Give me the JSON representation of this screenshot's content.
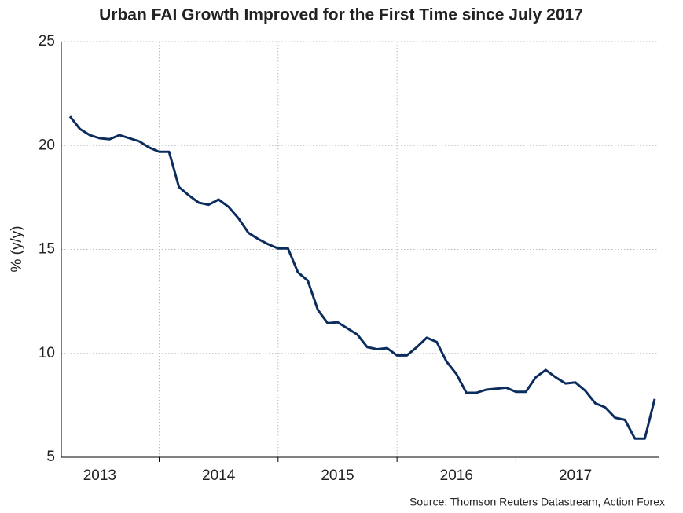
{
  "chart_data": {
    "type": "line",
    "title": "Urban FAI Growth Improved for the First Time since July 2017",
    "y_label": "% (y/y)",
    "source": "Source: Thomson Reuters Datastream, Action Forex",
    "categories": [
      null,
      null,
      null,
      "2013",
      null,
      null,
      null,
      null,
      null,
      null,
      null,
      null,
      null,
      null,
      null,
      "2014",
      null,
      null,
      null,
      null,
      null,
      null,
      null,
      null,
      null,
      null,
      null,
      "2015",
      null,
      null,
      null,
      null,
      null,
      null,
      null,
      null,
      null,
      null,
      null,
      "2016",
      null,
      null,
      null,
      null,
      null,
      null,
      null,
      null,
      null,
      null,
      null,
      "2017",
      null,
      null,
      null,
      null,
      null,
      null,
      null,
      null
    ],
    "series": [
      {
        "name": "Urban FAI",
        "color": "#0b2d5e",
        "values": [
          21.4,
          20.8,
          20.5,
          20.35,
          20.3,
          20.5,
          20.35,
          20.2,
          19.9,
          19.7,
          19.7,
          18.0,
          17.6,
          17.25,
          17.15,
          17.4,
          17.05,
          16.5,
          15.8,
          15.5,
          15.25,
          15.05,
          15.05,
          13.9,
          13.5,
          12.1,
          11.45,
          11.5,
          11.2,
          10.9,
          10.3,
          10.2,
          10.25,
          9.9,
          9.9,
          10.3,
          10.75,
          10.55,
          9.6,
          9.0,
          8.1,
          8.1,
          8.25,
          8.3,
          8.35,
          8.15,
          8.15,
          8.85,
          9.2,
          8.85,
          8.55,
          8.6,
          8.2,
          7.6,
          7.4,
          6.9,
          6.8,
          5.9,
          5.9,
          7.8
        ]
      }
    ],
    "ylim": [
      5,
      25
    ],
    "yticks": [
      5,
      10,
      15,
      20,
      25
    ],
    "grid": true
  }
}
